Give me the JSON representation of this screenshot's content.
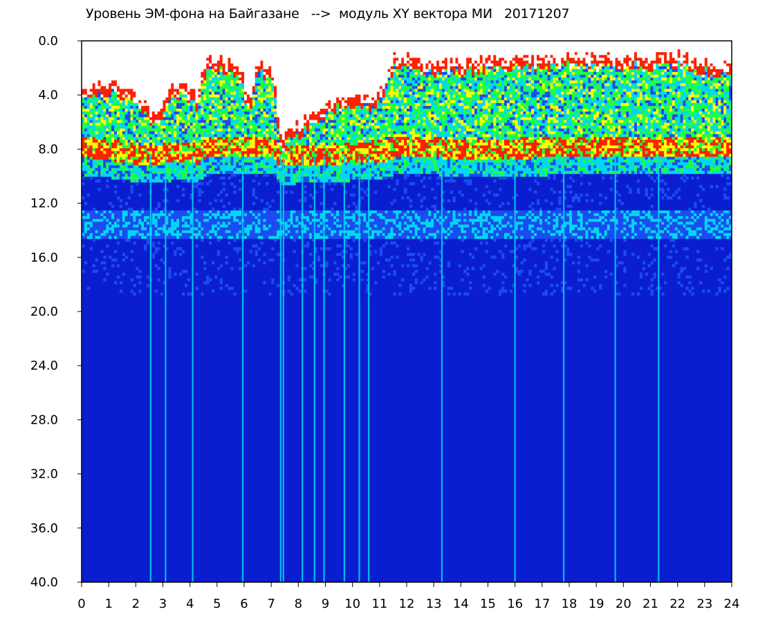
{
  "title": "Уровень ЭМ-фона на Байгазане   -->  модуль XY вектора МИ   20171207",
  "chart_data": {
    "type": "heatmap",
    "title": "Уровень ЭМ-фона на Байгазане   -->  модуль XY вектора МИ   20171207",
    "xlabel": "",
    "ylabel": "",
    "x_ticks": [
      "0",
      "1",
      "2",
      "3",
      "4",
      "5",
      "6",
      "7",
      "8",
      "9",
      "10",
      "11",
      "12",
      "13",
      "14",
      "15",
      "16",
      "17",
      "18",
      "19",
      "20",
      "21",
      "22",
      "23",
      "24"
    ],
    "y_ticks": [
      "0.0",
      "4.0",
      "8.0",
      "12.0",
      "16.0",
      "20.0",
      "24.0",
      "28.0",
      "32.0",
      "36.0",
      "40.0"
    ],
    "xlim": [
      0,
      24
    ],
    "ylim": [
      0,
      40
    ],
    "y_inverted": true,
    "colormap": [
      "#0018c8",
      "#1a4cf0",
      "#00d8f0",
      "#20ff40",
      "#ffff00",
      "#ff2000",
      "#ffffff"
    ],
    "background_color": "#0a1ed0",
    "grid": false,
    "legend": "none",
    "activity_profile": [
      {
        "t": 0.0,
        "top": 3.0,
        "sat": 8.0
      },
      {
        "t": 1.0,
        "top": 3.0,
        "sat": 8.2
      },
      {
        "t": 2.0,
        "top": 3.5,
        "sat": 8.5
      },
      {
        "t": 2.6,
        "top": 5.5,
        "sat": 8.6
      },
      {
        "t": 3.5,
        "top": 3.0,
        "sat": 8.4
      },
      {
        "t": 4.3,
        "top": 4.0,
        "sat": 8.5
      },
      {
        "t": 4.6,
        "top": 1.2,
        "sat": 8.0
      },
      {
        "t": 5.8,
        "top": 1.5,
        "sat": 8.0
      },
      {
        "t": 6.2,
        "top": 4.5,
        "sat": 8.0
      },
      {
        "t": 6.5,
        "top": 1.5,
        "sat": 8.0
      },
      {
        "t": 7.1,
        "top": 2.0,
        "sat": 8.0
      },
      {
        "t": 7.3,
        "top": 7.0,
        "sat": 8.7
      },
      {
        "t": 9.5,
        "top": 4.0,
        "sat": 8.5
      },
      {
        "t": 10.8,
        "top": 4.0,
        "sat": 8.3
      },
      {
        "t": 11.3,
        "top": 2.5,
        "sat": 8.3
      },
      {
        "t": 11.5,
        "top": 1.0,
        "sat": 8.0
      },
      {
        "t": 13.2,
        "top": 1.5,
        "sat": 8.0
      },
      {
        "t": 13.5,
        "top": 1.4,
        "sat": 8.2
      },
      {
        "t": 15.0,
        "top": 1.2,
        "sat": 8.2
      },
      {
        "t": 17.5,
        "top": 1.0,
        "sat": 8.0
      },
      {
        "t": 20.0,
        "top": 1.0,
        "sat": 8.0
      },
      {
        "t": 22.0,
        "top": 1.0,
        "sat": 8.0
      },
      {
        "t": 23.2,
        "top": 1.5,
        "sat": 8.0
      },
      {
        "t": 24.0,
        "top": 1.5,
        "sat": 8.0
      }
    ],
    "vertical_streaks": [
      2.55,
      3.1,
      4.1,
      5.95,
      7.35,
      7.45,
      8.15,
      8.6,
      8.95,
      9.7,
      10.25,
      10.6,
      13.3,
      16.0,
      17.8,
      19.7,
      21.3
    ]
  }
}
